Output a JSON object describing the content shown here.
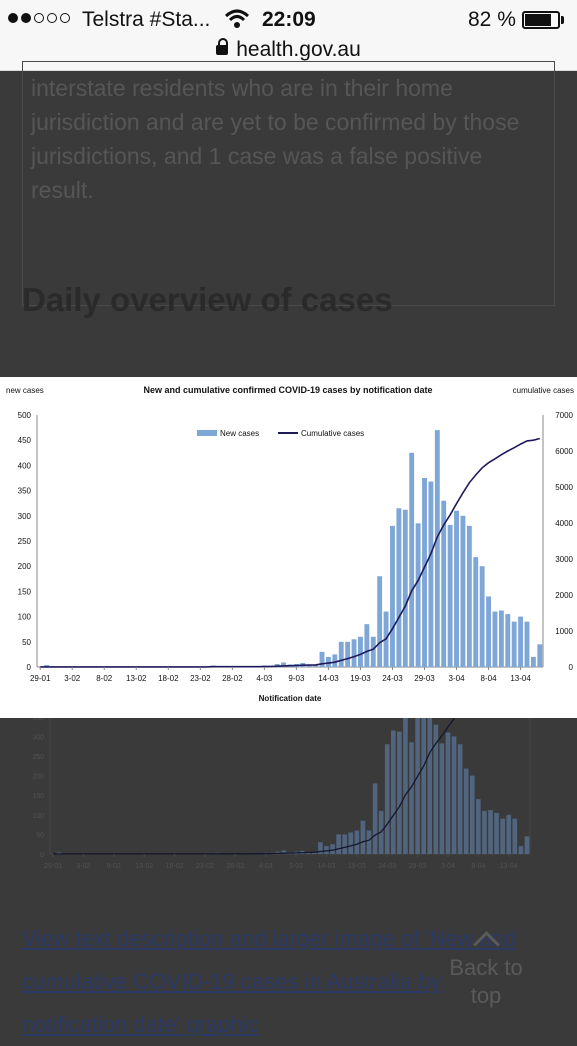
{
  "status_bar": {
    "carrier": "Telstra #Sta...",
    "time": "22:09",
    "battery_pct": "82 %",
    "url": "health.gov.au",
    "icons": [
      "signal-dots-icon",
      "wifi-icon",
      "battery-icon",
      "lock-icon"
    ]
  },
  "article": {
    "note_text": "interstate residents who are in their home jurisdiction and are yet to be confirmed by those jurisdictions, and 1 case was a false positive result.",
    "heading": "Daily overview of cases",
    "link_text": "View text description and larger image of 'New and cumulative COVID-19 cases in Australia by notification date' graphic",
    "back_to_top": "Back to top"
  },
  "chart_data": {
    "type": "bar",
    "title": "New and cumulative confirmed COVID-19 cases by notification date",
    "xlabel": "Notification date",
    "ylabel_left": "new cases",
    "ylabel_right": "cumulative cases",
    "ylim_left": [
      0,
      500
    ],
    "ylim_right": [
      0,
      7000
    ],
    "yticks_left": [
      "0",
      "50",
      "100",
      "150",
      "200",
      "250",
      "300",
      "350",
      "400",
      "450",
      "500"
    ],
    "yticks_right": [
      "0",
      "1000",
      "2000",
      "3000",
      "4000",
      "5000",
      "6000",
      "7000"
    ],
    "xtick_labels": [
      "29-01",
      "3-02",
      "8-02",
      "13-02",
      "18-02",
      "23-02",
      "28-02",
      "4-03",
      "9-03",
      "14-03",
      "19-03",
      "24-03",
      "29-03",
      "3-04",
      "8-04",
      "13-04"
    ],
    "legend": [
      "New cases",
      "Cumulative cases"
    ],
    "series": [
      {
        "name": "New cases",
        "type": "bar",
        "values": [
          0,
          4,
          0,
          0,
          0,
          0,
          0,
          0,
          0,
          0,
          0,
          0,
          0,
          0,
          0,
          0,
          0,
          0,
          0,
          0,
          0,
          0,
          0,
          0,
          0,
          0,
          0,
          3,
          0,
          0,
          0,
          0,
          0,
          0,
          2,
          3,
          3,
          6,
          9,
          5,
          6,
          8,
          5,
          5,
          30,
          20,
          25,
          50,
          50,
          55,
          60,
          85,
          60,
          180,
          110,
          280,
          315,
          312,
          425,
          285,
          375,
          368,
          470,
          330,
          282,
          310,
          300,
          280,
          218,
          200,
          140,
          110,
          112,
          105,
          90,
          100,
          90,
          20,
          45
        ]
      },
      {
        "name": "Cumulative cases",
        "type": "line",
        "values": [
          4,
          4,
          4,
          4,
          4,
          4,
          4,
          4,
          4,
          4,
          4,
          4,
          4,
          4,
          4,
          4,
          4,
          4,
          4,
          4,
          4,
          4,
          4,
          4,
          4,
          4,
          4,
          7,
          7,
          7,
          7,
          7,
          7,
          7,
          9,
          12,
          15,
          21,
          30,
          35,
          41,
          49,
          54,
          59,
          89,
          109,
          134,
          184,
          234,
          289,
          349,
          434,
          494,
          674,
          784,
          1064,
          1379,
          1691,
          2116,
          2401,
          2776,
          3144,
          3614,
          3944,
          4226,
          4536,
          4836,
          5116,
          5334,
          5534,
          5674,
          5784,
          5896,
          6001,
          6091,
          6191,
          6281,
          6301,
          6346
        ]
      }
    ],
    "colors": {
      "bars": "#7ea6d6",
      "line": "#1f1a5c"
    }
  }
}
